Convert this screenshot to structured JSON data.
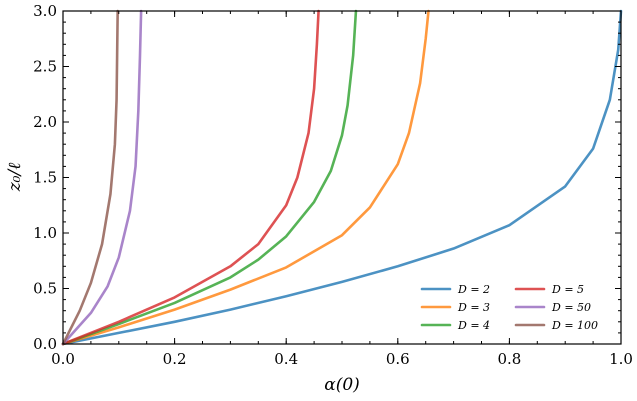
{
  "chart_data": {
    "type": "line",
    "xlabel": "α(0)",
    "ylabel": "z₀/ℓ",
    "xlim": [
      0.0,
      1.0
    ],
    "ylim": [
      0.0,
      3.0
    ],
    "xticks": [
      "0.0",
      "0.2",
      "0.4",
      "0.6",
      "0.8",
      "1.0"
    ],
    "yticks": [
      "0.0",
      "0.5",
      "1.0",
      "1.5",
      "2.0",
      "2.5",
      "3.0"
    ],
    "grid": false,
    "legend": {
      "placement": "bottom-right",
      "columns": 2
    },
    "series": [
      {
        "name": "D = 2",
        "color": "#1f77b4",
        "x": [
          0.0,
          0.1,
          0.2,
          0.3,
          0.4,
          0.5,
          0.6,
          0.7,
          0.8,
          0.9,
          0.95,
          0.98,
          0.995,
          1.0
        ],
        "y": [
          0.0,
          0.1,
          0.2,
          0.31,
          0.43,
          0.56,
          0.7,
          0.86,
          1.07,
          1.42,
          1.76,
          2.2,
          2.65,
          3.0
        ]
      },
      {
        "name": "D = 3",
        "color": "#ff7f0e",
        "x": [
          0.0,
          0.1,
          0.2,
          0.3,
          0.4,
          0.5,
          0.55,
          0.6,
          0.62,
          0.64,
          0.65,
          0.655
        ],
        "y": [
          0.0,
          0.15,
          0.31,
          0.49,
          0.69,
          0.98,
          1.23,
          1.62,
          1.9,
          2.35,
          2.75,
          3.0
        ]
      },
      {
        "name": "D = 4",
        "color": "#2ca02c",
        "x": [
          0.0,
          0.1,
          0.2,
          0.3,
          0.35,
          0.4,
          0.45,
          0.48,
          0.5,
          0.51,
          0.52,
          0.525
        ],
        "y": [
          0.0,
          0.18,
          0.37,
          0.6,
          0.76,
          0.97,
          1.28,
          1.56,
          1.88,
          2.15,
          2.6,
          3.0
        ]
      },
      {
        "name": "D = 5",
        "color": "#d62728",
        "x": [
          0.0,
          0.1,
          0.2,
          0.3,
          0.35,
          0.4,
          0.42,
          0.44,
          0.45,
          0.455,
          0.458
        ],
        "y": [
          0.0,
          0.2,
          0.42,
          0.7,
          0.9,
          1.25,
          1.5,
          1.9,
          2.3,
          2.7,
          3.0
        ]
      },
      {
        "name": "D = 50",
        "color": "#9467bd",
        "x": [
          0.0,
          0.05,
          0.08,
          0.1,
          0.12,
          0.13,
          0.135,
          0.138,
          0.14
        ],
        "y": [
          0.0,
          0.28,
          0.52,
          0.78,
          1.2,
          1.6,
          2.1,
          2.6,
          3.0
        ]
      },
      {
        "name": "D = 100",
        "color": "#8c564b",
        "x": [
          0.0,
          0.03,
          0.05,
          0.07,
          0.085,
          0.093,
          0.096,
          0.097,
          0.098
        ],
        "y": [
          0.0,
          0.3,
          0.55,
          0.9,
          1.35,
          1.8,
          2.2,
          2.6,
          3.0
        ]
      }
    ]
  }
}
